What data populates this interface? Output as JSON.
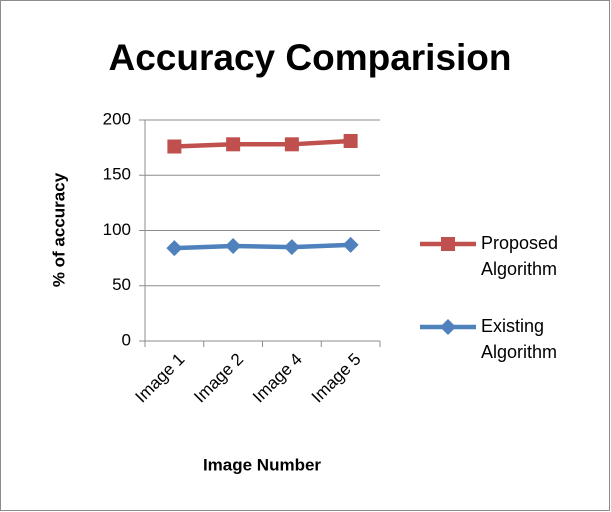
{
  "chart_data": {
    "type": "line",
    "title": "Accuracy Comparision",
    "x_label": "Image Number",
    "y_label": "% of accuracy",
    "categories": [
      "Image 1",
      "Image 2",
      "Image 4",
      "Image 5"
    ],
    "series": [
      {
        "name": "Proposed Algorithm",
        "color": "#c0504d",
        "marker": "square",
        "values": [
          176,
          178,
          178,
          181
        ]
      },
      {
        "name": "Existing Algorithm",
        "color": "#4f81bd",
        "marker": "diamond",
        "values": [
          84,
          86,
          85,
          87
        ]
      }
    ],
    "ylim": [
      0,
      200
    ],
    "yticks": [
      0,
      50,
      100,
      150,
      200
    ],
    "grid": true,
    "legend": "right"
  }
}
